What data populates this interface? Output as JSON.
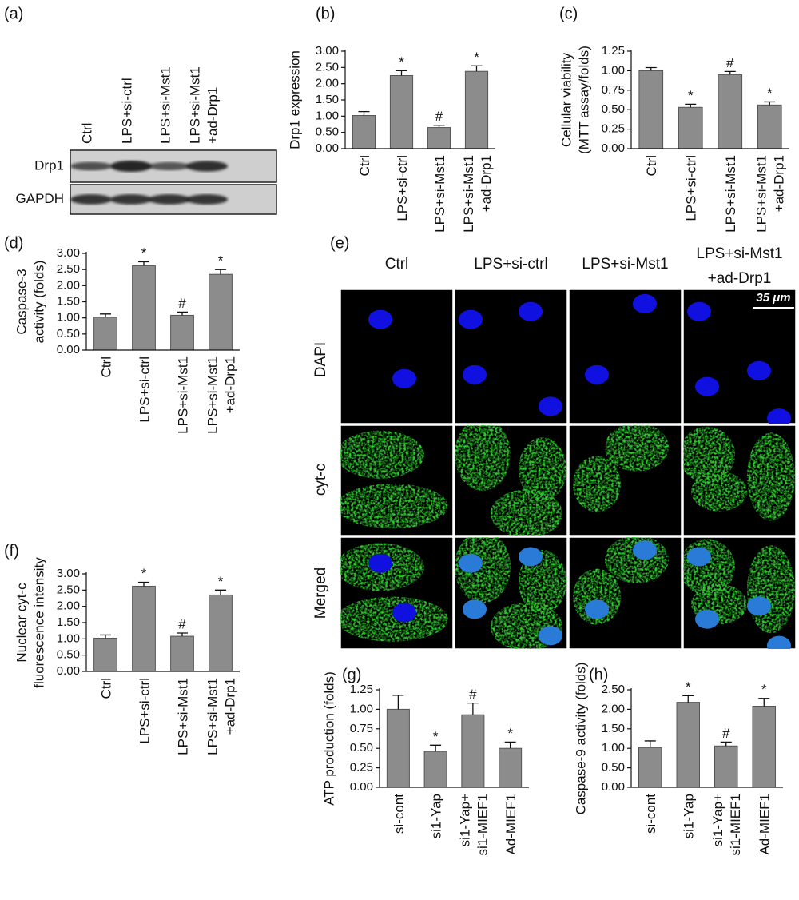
{
  "blot": {
    "panel_label": "(a)",
    "lanes": [
      [
        "Ctrl"
      ],
      [
        "LPS+si-ctrl"
      ],
      [
        "LPS+si-Mst1"
      ],
      [
        "LPS+si-Mst1",
        "+ad-Drp1"
      ]
    ],
    "rows": [
      "Drp1",
      "GAPDH"
    ]
  },
  "micrograph": {
    "panel_label": "(e)",
    "columns": [
      [
        "Ctrl"
      ],
      [
        "LPS+si-ctrl"
      ],
      [
        "LPS+si-Mst1"
      ],
      [
        "LPS+si-Mst1",
        "+ad-Drp1"
      ]
    ],
    "rows": [
      "DAPI",
      "cyt-c",
      "Merged"
    ],
    "scale_bar": "35 μm"
  },
  "chart_data": [
    {
      "type": "bar",
      "panel_label": "(b)",
      "ylabel": [
        "Drp1 expression"
      ],
      "categories": [
        [
          "Ctrl"
        ],
        [
          "LPS+si-ctrl"
        ],
        [
          "LPS+si-Mst1"
        ],
        [
          "LPS+si-Mst1",
          "+ad-Drp1"
        ]
      ],
      "values": [
        1.02,
        2.25,
        0.65,
        2.38
      ],
      "errors": [
        0.12,
        0.15,
        0.07,
        0.17
      ],
      "markers": [
        null,
        "*",
        "#",
        "*"
      ],
      "color": "#8c8c8c",
      "ylim": [
        0,
        3
      ],
      "yticks": [
        {
          "value": 0,
          "label": "0.00"
        },
        {
          "value": 0.5,
          "label": "0.50"
        },
        {
          "value": 1,
          "label": "1.00"
        },
        {
          "value": 1.5,
          "label": "1.50"
        },
        {
          "value": 2,
          "label": "2.00"
        },
        {
          "value": 2.5,
          "label": "2.50"
        },
        {
          "value": 3,
          "label": "3.00"
        }
      ]
    },
    {
      "type": "bar",
      "panel_label": "(c)",
      "ylabel": [
        "Cellular viability",
        "(MTT assay/folds)"
      ],
      "categories": [
        [
          "Ctrl"
        ],
        [
          "LPS+si-ctrl"
        ],
        [
          "LPS+si-Mst1"
        ],
        [
          "LPS+si-Mst1",
          "+ad-Drp1"
        ]
      ],
      "values": [
        1.0,
        0.53,
        0.95,
        0.56
      ],
      "errors": [
        0.04,
        0.04,
        0.04,
        0.04
      ],
      "markers": [
        null,
        "*",
        "#",
        "*"
      ],
      "color": "#8c8c8c",
      "ylim": [
        0,
        1.25
      ],
      "yticks": [
        {
          "value": 0,
          "label": "0.00"
        },
        {
          "value": 0.25,
          "label": "0.25"
        },
        {
          "value": 0.5,
          "label": "0.50"
        },
        {
          "value": 0.75,
          "label": "0.75"
        },
        {
          "value": 1,
          "label": "1.00"
        },
        {
          "value": 1.25,
          "label": "1.25"
        }
      ]
    },
    {
      "type": "bar",
      "panel_label": "(d)",
      "ylabel": [
        "Caspase-3",
        "activity (folds)"
      ],
      "categories": [
        [
          "Ctrl"
        ],
        [
          "LPS+si-ctrl"
        ],
        [
          "LPS+si-Mst1"
        ],
        [
          "LPS+si-Mst1",
          "+ad-Drp1"
        ]
      ],
      "values": [
        1.02,
        2.62,
        1.08,
        2.35
      ],
      "errors": [
        0.1,
        0.12,
        0.1,
        0.15
      ],
      "markers": [
        null,
        "*",
        "#",
        "*"
      ],
      "color": "#8c8c8c",
      "ylim": [
        0,
        3
      ],
      "yticks": [
        {
          "value": 0,
          "label": "0.00"
        },
        {
          "value": 0.5,
          "label": "0.50"
        },
        {
          "value": 1,
          "label": "1.00"
        },
        {
          "value": 1.5,
          "label": "1.50"
        },
        {
          "value": 2,
          "label": "2.00"
        },
        {
          "value": 2.5,
          "label": "2.50"
        },
        {
          "value": 3,
          "label": "3.00"
        }
      ]
    },
    {
      "type": "bar",
      "panel_label": "(f)",
      "ylabel": [
        "Nuclear cyt-c",
        "fluorescence intensity"
      ],
      "categories": [
        [
          "Ctrl"
        ],
        [
          "LPS+si-ctrl"
        ],
        [
          "LPS+si-Mst1"
        ],
        [
          "LPS+si-Mst1",
          "+ad-Drp1"
        ]
      ],
      "values": [
        1.02,
        2.62,
        1.08,
        2.35
      ],
      "errors": [
        0.1,
        0.12,
        0.1,
        0.15
      ],
      "markers": [
        null,
        "*",
        "#",
        "*"
      ],
      "color": "#8c8c8c",
      "ylim": [
        0,
        3
      ],
      "yticks": [
        {
          "value": 0,
          "label": "0.00"
        },
        {
          "value": 0.5,
          "label": "0.50"
        },
        {
          "value": 1,
          "label": "1.00"
        },
        {
          "value": 1.5,
          "label": "1.50"
        },
        {
          "value": 2,
          "label": "2.00"
        },
        {
          "value": 2.5,
          "label": "2.50"
        },
        {
          "value": 3,
          "label": "3.00"
        }
      ]
    },
    {
      "type": "bar",
      "panel_label": "(g)",
      "ylabel": [
        "ATP production (folds)"
      ],
      "categories": [
        [
          "si-cont"
        ],
        [
          "si1-Yap"
        ],
        [
          "si1-Yap+",
          "si1-MIEF1"
        ],
        [
          "Ad-MIEF1"
        ]
      ],
      "values": [
        1.0,
        0.46,
        0.93,
        0.5
      ],
      "errors": [
        0.18,
        0.08,
        0.15,
        0.08
      ],
      "markers": [
        null,
        "*",
        "#",
        "*"
      ],
      "color": "#8c8c8c",
      "ylim": [
        0,
        1.25
      ],
      "yticks": [
        {
          "value": 0,
          "label": "0.00"
        },
        {
          "value": 0.25,
          "label": "0.25"
        },
        {
          "value": 0.5,
          "label": "0.50"
        },
        {
          "value": 0.75,
          "label": "0.75"
        },
        {
          "value": 1,
          "label": "1.00"
        },
        {
          "value": 1.25,
          "label": "1.25"
        }
      ]
    },
    {
      "type": "bar",
      "panel_label": "(h)",
      "ylabel": [
        "Caspase-9 activity (folds)"
      ],
      "categories": [
        [
          "si-cont"
        ],
        [
          "si1-Yap"
        ],
        [
          "si1-Yap+",
          "si1-MIEF1"
        ],
        [
          "Ad-MIEF1"
        ]
      ],
      "values": [
        1.02,
        2.18,
        1.06,
        2.08
      ],
      "errors": [
        0.17,
        0.17,
        0.1,
        0.2
      ],
      "markers": [
        null,
        "*",
        "#",
        "*"
      ],
      "color": "#8c8c8c",
      "ylim": [
        0,
        2.5
      ],
      "yticks": [
        {
          "value": 0,
          "label": "0.00"
        },
        {
          "value": 0.5,
          "label": "0.50"
        },
        {
          "value": 1,
          "label": "1.00"
        },
        {
          "value": 1.5,
          "label": "1.50"
        },
        {
          "value": 2,
          "label": "2.00"
        },
        {
          "value": 2.5,
          "label": "2.50"
        }
      ]
    }
  ]
}
